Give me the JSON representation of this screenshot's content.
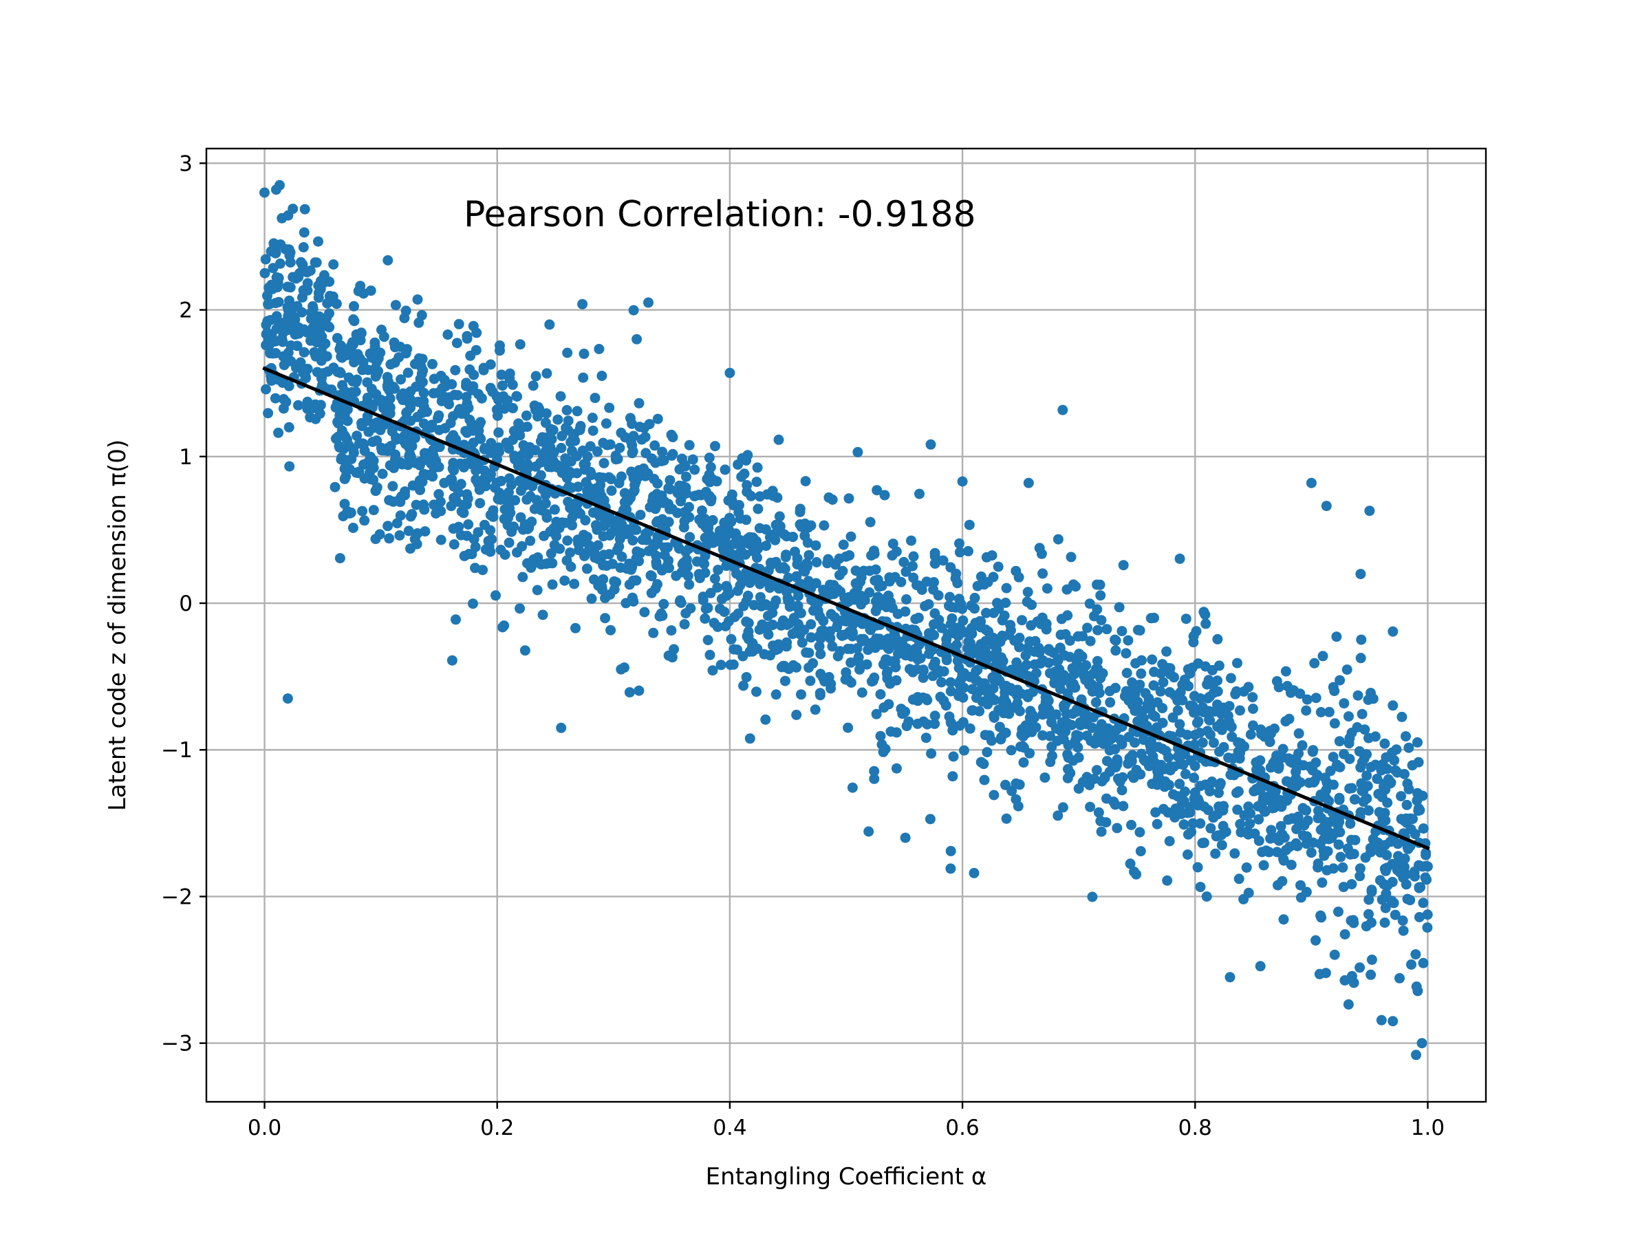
{
  "chart_data": {
    "type": "scatter",
    "title": "",
    "xlabel": "Entangling Coefficient α",
    "ylabel": "Latent code z of dimension π(0)",
    "annotation": "Pearson Correlation: -0.9188",
    "xlim": [
      -0.05,
      1.05
    ],
    "ylim": [
      -3.4,
      3.1
    ],
    "x_ticks": [
      0.0,
      0.2,
      0.4,
      0.6,
      0.8,
      1.0
    ],
    "x_tick_labels": [
      "0.0",
      "0.2",
      "0.4",
      "0.6",
      "0.8",
      "1.0"
    ],
    "y_ticks": [
      3,
      2,
      1,
      0,
      -1,
      -2,
      -3
    ],
    "y_tick_labels": [
      "3",
      "2",
      "1",
      "0",
      "−1",
      "−2",
      "−3"
    ],
    "grid": true,
    "marker_color": "#1f77b4",
    "fit_line": {
      "color": "#000000",
      "x": [
        0.0,
        1.0
      ],
      "y": [
        1.6,
        -1.67
      ]
    },
    "points": {
      "count": 3000,
      "x_range": [
        0.0,
        1.0
      ],
      "trend": "linear",
      "intercept": 1.6,
      "slope": -3.27,
      "typical_spread": 0.35,
      "notable_outliers": [
        [
          0.33,
          2.05
        ],
        [
          0.32,
          1.8
        ],
        [
          0.245,
          1.9
        ],
        [
          0.29,
          1.55
        ],
        [
          0.4,
          1.57
        ],
        [
          0.51,
          1.03
        ],
        [
          0.6,
          0.83
        ],
        [
          0.9,
          0.82
        ],
        [
          0.95,
          0.63
        ],
        [
          0.255,
          -0.85
        ],
        [
          0.02,
          -0.65
        ],
        [
          0.59,
          -1.69
        ],
        [
          0.61,
          -1.84
        ],
        [
          0.81,
          -2.0
        ],
        [
          0.83,
          -2.55
        ],
        [
          0.99,
          -3.08
        ],
        [
          0.0,
          2.8
        ],
        [
          0.01,
          2.82
        ],
        [
          0.97,
          -2.85
        ],
        [
          0.995,
          -3.0
        ]
      ]
    }
  }
}
